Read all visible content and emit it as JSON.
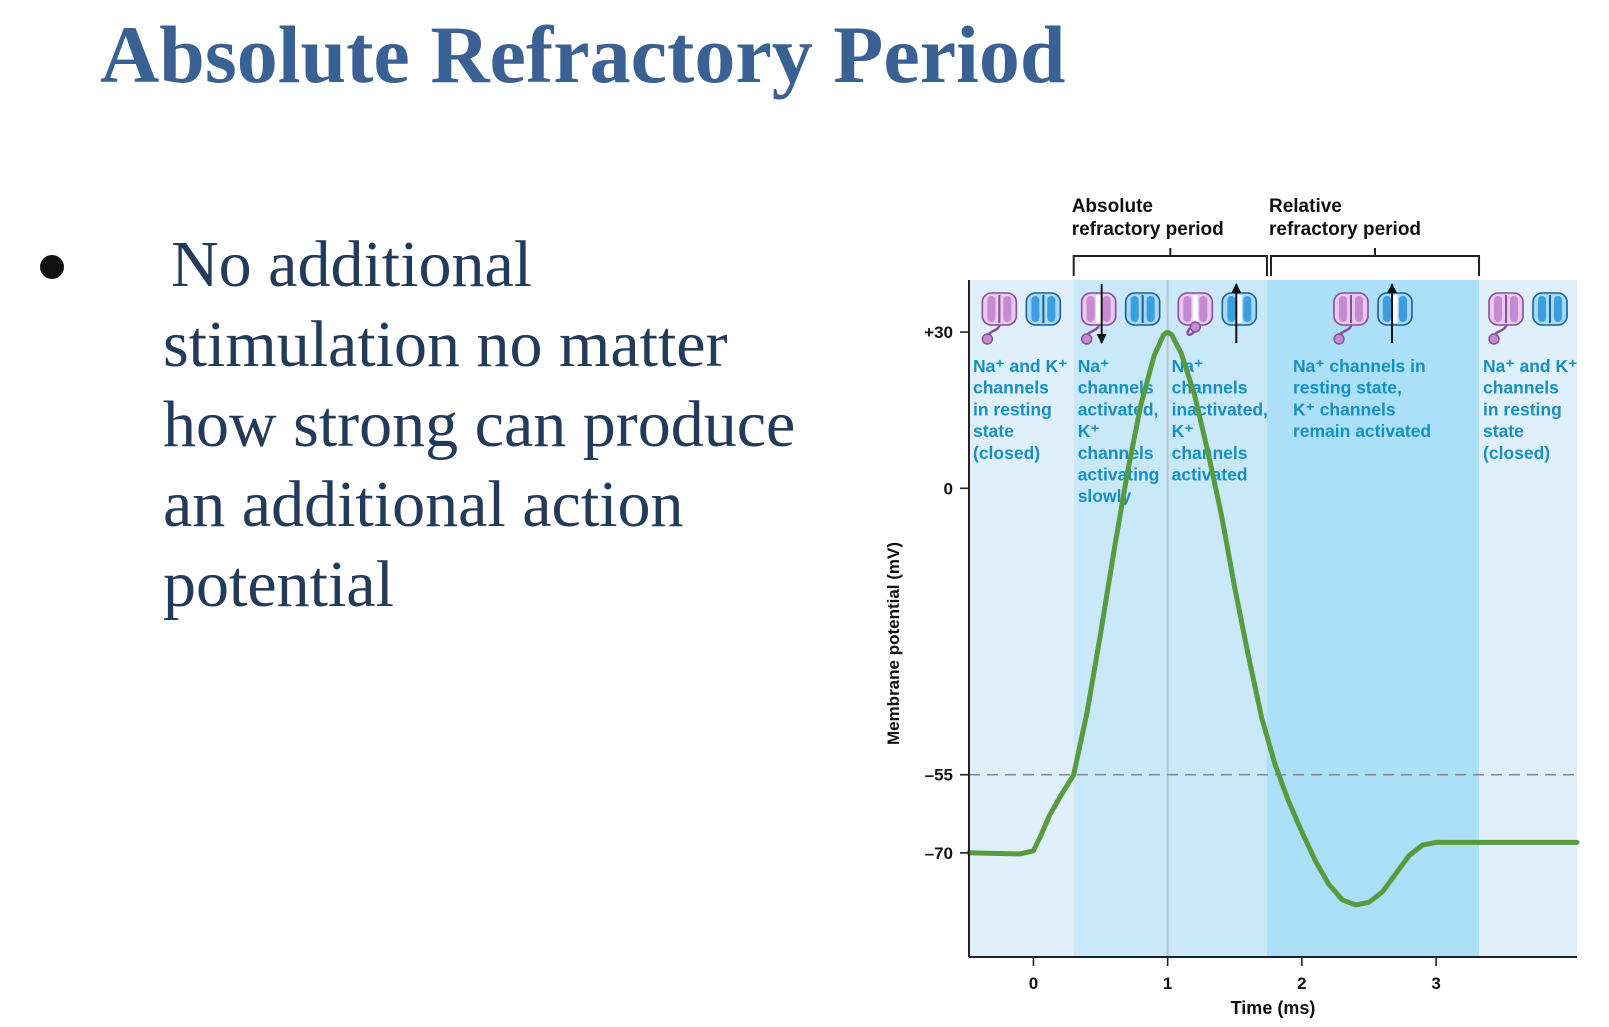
{
  "slide": {
    "title": "Absolute Refractory Period",
    "bullet": "No additional stimulation no matter how strong can produce an additional action potential"
  },
  "chart_data": {
    "type": "line",
    "xlabel": "Time (ms)",
    "ylabel": "Membrane potential (mV)",
    "xlim": [
      -0.48,
      4.05
    ],
    "ylim": [
      -90,
      40
    ],
    "x_ticks": [
      0,
      1,
      2,
      3
    ],
    "x_tick_labels": [
      "0",
      "1",
      "2",
      "3"
    ],
    "y_ticks": [
      30,
      0,
      -55,
      -70
    ],
    "y_tick_labels": [
      "+30",
      "0",
      "–55",
      "–70"
    ],
    "threshold": -55,
    "peak_time": 1,
    "series": [
      {
        "color": "#5a9a3e",
        "points": [
          [
            -0.48,
            -70.0
          ],
          [
            -0.3,
            -70.1
          ],
          [
            -0.1,
            -70.2
          ],
          [
            0.0,
            -69.6
          ],
          [
            0.05,
            -67.0
          ],
          [
            0.12,
            -62.8
          ],
          [
            0.2,
            -59.2
          ],
          [
            0.3,
            -55.0
          ],
          [
            0.4,
            -43.0
          ],
          [
            0.5,
            -28.0
          ],
          [
            0.6,
            -12.0
          ],
          [
            0.7,
            3.0
          ],
          [
            0.8,
            16.0
          ],
          [
            0.9,
            25.5
          ],
          [
            0.97,
            29.5
          ],
          [
            1.0,
            30.0
          ],
          [
            1.03,
            29.5
          ],
          [
            1.1,
            26.0
          ],
          [
            1.2,
            18.0
          ],
          [
            1.3,
            7.0
          ],
          [
            1.4,
            -5.0
          ],
          [
            1.5,
            -19.0
          ],
          [
            1.6,
            -32.0
          ],
          [
            1.7,
            -44.0
          ],
          [
            1.8,
            -53.0
          ],
          [
            1.9,
            -60.0
          ],
          [
            2.0,
            -66.0
          ],
          [
            2.1,
            -71.5
          ],
          [
            2.2,
            -76.0
          ],
          [
            2.3,
            -79.0
          ],
          [
            2.4,
            -80.0
          ],
          [
            2.5,
            -79.5
          ],
          [
            2.6,
            -77.5
          ],
          [
            2.7,
            -74.0
          ],
          [
            2.8,
            -70.5
          ],
          [
            2.9,
            -68.5
          ],
          [
            3.0,
            -68.0
          ],
          [
            3.3,
            -68.0
          ],
          [
            3.7,
            -68.0
          ],
          [
            4.05,
            -68.0
          ]
        ]
      }
    ],
    "regions": [
      {
        "x0": -0.48,
        "x1": 0.3,
        "color": "#dff0fb",
        "text": "Na⁺ and K⁺\nchannels\nin resting\nstate\n(closed)",
        "channels": {
          "na": "closed",
          "k": "closed",
          "arrow": "none"
        }
      },
      {
        "x0": 0.3,
        "x1": 1.0,
        "color": "#c9e8f9",
        "text": "Na⁺\nchannels\nactivated,\nK⁺\nchannels\nactivating\nslowly",
        "channels": {
          "na": "open",
          "k": "closed",
          "arrow": "down"
        }
      },
      {
        "x0": 1.0,
        "x1": 1.74,
        "color": "#c9e8f9",
        "text": "Na⁺\nchannels\ninactivated,\nK⁺\nchannels\nactivated",
        "channels": {
          "na": "inactivated",
          "k": "open",
          "arrow": "up"
        }
      },
      {
        "x0": 1.74,
        "x1": 3.32,
        "color": "#ace0f8",
        "text": "Na⁺ channels in\nresting state,\nK⁺ channels\nremain activated",
        "channels": {
          "na": "closed",
          "k": "open",
          "arrow": "up"
        }
      },
      {
        "x0": 3.32,
        "x1": 4.05,
        "color": "#dff0fb",
        "text": "Na⁺ and K⁺\nchannels\nin resting\nstate\n(closed)",
        "channels": {
          "na": "closed",
          "k": "closed",
          "arrow": "none"
        }
      }
    ],
    "brackets": [
      {
        "label": "Absolute\nrefractory period",
        "x0": 0.3,
        "x1": 1.74
      },
      {
        "label": "Relative\nrefractory period",
        "x0": 1.77,
        "x1": 3.32
      }
    ],
    "colors": {
      "curve": "#5a9a3e",
      "region_text": "#1590c4",
      "na_channel": "#c58ad0",
      "k_channel": "#3b9ee0",
      "title": "#3a6194"
    }
  }
}
